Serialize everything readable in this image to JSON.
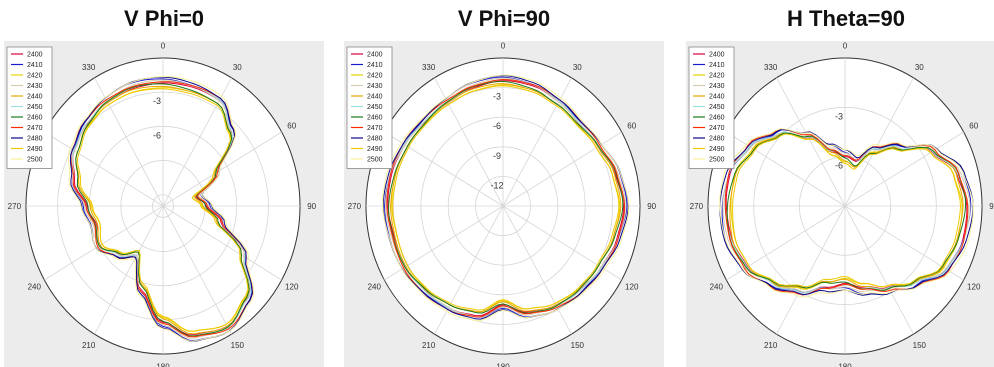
{
  "legend_items": [
    "2400",
    "2410",
    "2420",
    "2430",
    "2440",
    "2450",
    "2460",
    "2470",
    "2480",
    "2490",
    "2500"
  ],
  "series_colors": [
    "#e0003a",
    "#1a1ad0",
    "#e8d200",
    "#d9ccb0",
    "#e8a600",
    "#9fe0e0",
    "#1a7a1a",
    "#ff2a00",
    "#0a0a8a",
    "#f0c800",
    "#f8f09a"
  ],
  "chart_data": [
    {
      "type": "polar-line",
      "title": "V Phi=0",
      "angle_ticks": [
        "0",
        "30",
        "60",
        "90",
        "120",
        "150",
        "180",
        "210",
        "240",
        "270",
        "300",
        "330"
      ],
      "angle_labels_shown": [
        "0",
        "30",
        "60",
        "90",
        "120",
        "150",
        "180",
        "210",
        "240",
        "270",
        "330"
      ],
      "radial_ticks": [
        "-3",
        "-6"
      ],
      "radial_range": [
        -13,
        0
      ],
      "grid": true,
      "legend": "top-left",
      "pattern_angles_deg": [
        0,
        15,
        30,
        45,
        60,
        75,
        90,
        105,
        120,
        135,
        150,
        165,
        180,
        195,
        210,
        225,
        240,
        255,
        270,
        285,
        300,
        315,
        330,
        345
      ],
      "pattern_db": [
        -2.2,
        -2.3,
        -2.4,
        -3.8,
        -7.2,
        -9.7,
        -8.9,
        -7.4,
        -4.2,
        -1.6,
        -0.7,
        -1.2,
        -2.8,
        -5.4,
        -8.1,
        -7.0,
        -6.0,
        -6.4,
        -5.8,
        -4.4,
        -3.4,
        -2.8,
        -2.4,
        -2.2
      ],
      "series": [
        {
          "name": "2400",
          "offset_db": 0.0
        },
        {
          "name": "2410",
          "offset_db": 0.3
        },
        {
          "name": "2420",
          "offset_db": -0.3
        },
        {
          "name": "2430",
          "offset_db": 0.15
        },
        {
          "name": "2440",
          "offset_db": -0.2
        },
        {
          "name": "2450",
          "offset_db": 0.1
        },
        {
          "name": "2460",
          "offset_db": -0.1
        },
        {
          "name": "2470",
          "offset_db": 0.2
        },
        {
          "name": "2480",
          "offset_db": 0.4
        },
        {
          "name": "2490",
          "offset_db": -0.4
        },
        {
          "name": "2500",
          "offset_db": 0.5
        }
      ]
    },
    {
      "type": "polar-line",
      "title": "V Phi=90",
      "angle_ticks": [
        "0",
        "30",
        "60",
        "90",
        "120",
        "150",
        "180",
        "210",
        "240",
        "270",
        "300",
        "330"
      ],
      "angle_labels_shown": [
        "0",
        "30",
        "60",
        "90",
        "120",
        "150",
        "180",
        "210",
        "240",
        "270",
        "330"
      ],
      "radial_ticks": [
        "-3",
        "-6",
        "-9",
        "-12"
      ],
      "radial_range": [
        -15,
        0
      ],
      "grid": true,
      "legend": "top-left",
      "pattern_angles_deg": [
        0,
        15,
        30,
        45,
        60,
        75,
        90,
        105,
        120,
        135,
        150,
        165,
        180,
        195,
        210,
        225,
        240,
        255,
        270,
        285,
        300,
        315,
        330,
        345
      ],
      "pattern_db": [
        -2.3,
        -2.5,
        -2.9,
        -3.2,
        -2.9,
        -2.2,
        -1.8,
        -2.2,
        -2.7,
        -3.0,
        -3.3,
        -3.8,
        -5.0,
        -3.6,
        -3.2,
        -2.9,
        -2.6,
        -2.6,
        -2.4,
        -2.5,
        -2.7,
        -2.9,
        -2.8,
        -2.5
      ],
      "series": [
        {
          "name": "2400",
          "offset_db": 0.0
        },
        {
          "name": "2410",
          "offset_db": 0.3
        },
        {
          "name": "2420",
          "offset_db": -0.3
        },
        {
          "name": "2430",
          "offset_db": 0.15
        },
        {
          "name": "2440",
          "offset_db": -0.2
        },
        {
          "name": "2450",
          "offset_db": 0.1
        },
        {
          "name": "2460",
          "offset_db": -0.1
        },
        {
          "name": "2470",
          "offset_db": 0.2
        },
        {
          "name": "2480",
          "offset_db": 0.4
        },
        {
          "name": "2490",
          "offset_db": -0.4
        },
        {
          "name": "2500",
          "offset_db": 0.5
        }
      ]
    },
    {
      "type": "polar-line",
      "title": "H Theta=90",
      "angle_ticks": [
        "0",
        "30",
        "60",
        "90",
        "120",
        "150",
        "180",
        "210",
        "240",
        "270",
        "300",
        "330"
      ],
      "angle_labels_shown": [
        "0",
        "30",
        "60",
        "90",
        "120",
        "150",
        "180",
        "210",
        "240",
        "270",
        "330"
      ],
      "radial_ticks": [
        "-3",
        "-6"
      ],
      "radial_range": [
        -9,
        0
      ],
      "grid": true,
      "legend": "top-left",
      "pattern_angles_deg": [
        0,
        15,
        30,
        45,
        60,
        75,
        90,
        105,
        120,
        135,
        150,
        165,
        180,
        195,
        210,
        225,
        240,
        255,
        270,
        285,
        300,
        315,
        330,
        345
      ],
      "pattern_db": [
        -6.0,
        -6.3,
        -5.1,
        -4.0,
        -2.3,
        -1.3,
        -1.0,
        -1.1,
        -1.4,
        -2.4,
        -3.2,
        -3.8,
        -4.3,
        -4.0,
        -3.1,
        -2.3,
        -1.5,
        -1.2,
        -1.2,
        -1.3,
        -1.9,
        -2.8,
        -4.1,
        -5.5
      ],
      "series": [
        {
          "name": "2400",
          "offset_db": 0.0
        },
        {
          "name": "2410",
          "offset_db": 0.2
        },
        {
          "name": "2420",
          "offset_db": -0.2
        },
        {
          "name": "2430",
          "offset_db": 0.1
        },
        {
          "name": "2440",
          "offset_db": -0.15
        },
        {
          "name": "2450",
          "offset_db": 0.05
        },
        {
          "name": "2460",
          "offset_db": -0.1
        },
        {
          "name": "2470",
          "offset_db": 0.15
        },
        {
          "name": "2480",
          "offset_db": 0.3
        },
        {
          "name": "2490",
          "offset_db": -0.3
        },
        {
          "name": "2500",
          "offset_db": 0.35
        }
      ]
    }
  ]
}
